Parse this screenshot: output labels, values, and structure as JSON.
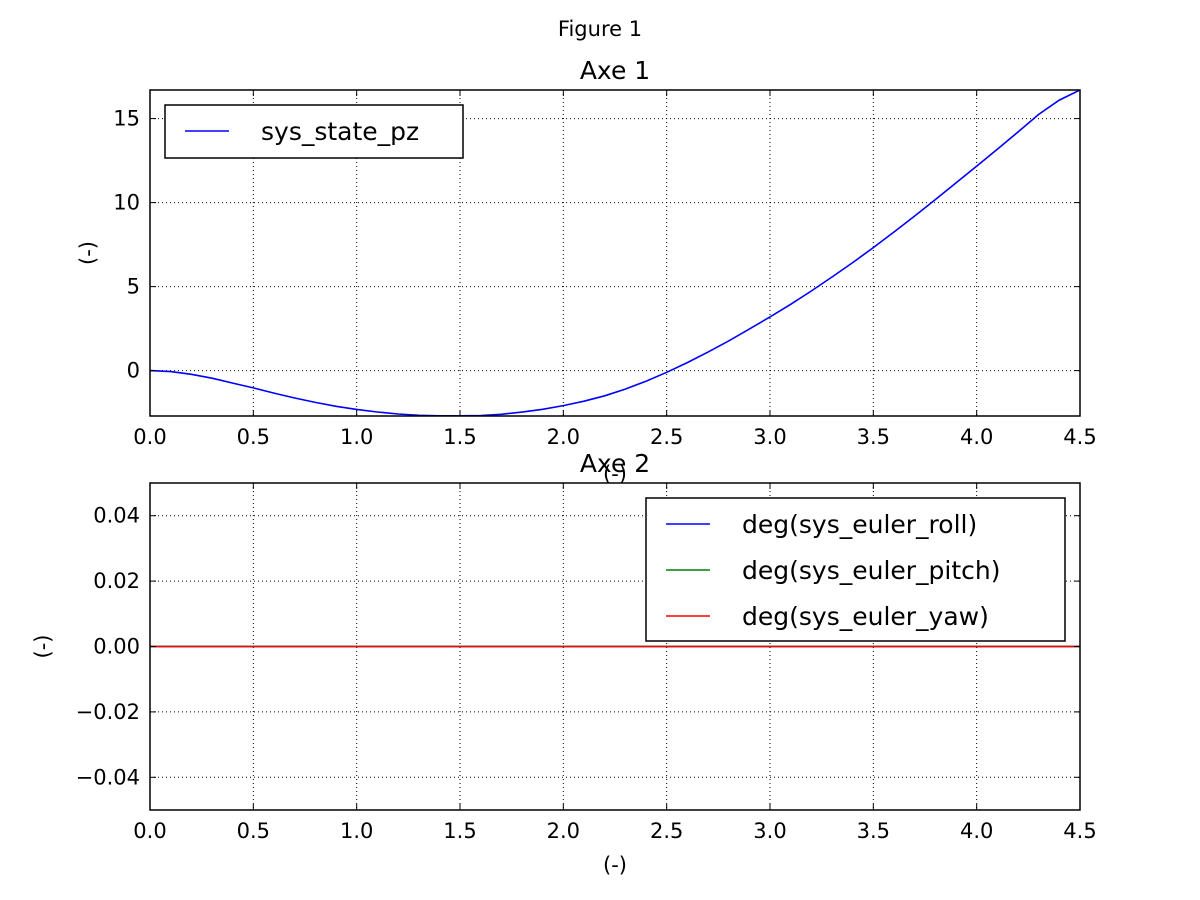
{
  "window": {
    "title": "Figure 1"
  },
  "chart_data": [
    {
      "type": "line",
      "title": "Axe 1",
      "xlabel": "(-)",
      "ylabel": "(-)",
      "xlim": [
        0.0,
        4.5
      ],
      "ylim": [
        -2.7,
        16.7
      ],
      "xticks": [
        "0.0",
        "0.5",
        "1.0",
        "1.5",
        "2.0",
        "2.5",
        "3.0",
        "3.5",
        "4.0",
        "4.5"
      ],
      "xtick_values": [
        0,
        0.5,
        1.0,
        1.5,
        2.0,
        2.5,
        3.0,
        3.5,
        4.0,
        4.5
      ],
      "yticks": [
        "0",
        "5",
        "10",
        "15"
      ],
      "ytick_values": [
        0,
        5,
        10,
        15
      ],
      "grid": true,
      "legend": "upper-left",
      "series": [
        {
          "name": "sys_state_pz",
          "color": "#0000ff",
          "x": [
            0,
            0.1,
            0.2,
            0.3,
            0.4,
            0.5,
            0.6,
            0.7,
            0.8,
            0.9,
            1.0,
            1.1,
            1.2,
            1.3,
            1.4,
            1.5,
            1.6,
            1.7,
            1.8,
            1.9,
            2.0,
            2.1,
            2.2,
            2.3,
            2.4,
            2.5,
            2.6,
            2.7,
            2.8,
            2.9,
            3.0,
            3.1,
            3.2,
            3.3,
            3.4,
            3.5,
            3.6,
            3.7,
            3.8,
            3.9,
            4.0,
            4.1,
            4.2,
            4.3,
            4.4,
            4.5
          ],
          "y": [
            0.0,
            -0.06,
            -0.22,
            -0.45,
            -0.74,
            -1.03,
            -1.34,
            -1.63,
            -1.89,
            -2.12,
            -2.31,
            -2.46,
            -2.58,
            -2.66,
            -2.69,
            -2.69,
            -2.67,
            -2.6,
            -2.47,
            -2.3,
            -2.08,
            -1.82,
            -1.5,
            -1.1,
            -0.63,
            -0.1,
            0.48,
            1.1,
            1.77,
            2.47,
            3.2,
            3.95,
            4.74,
            5.57,
            6.43,
            7.32,
            8.25,
            9.2,
            10.18,
            11.17,
            12.17,
            13.17,
            14.2,
            15.25,
            16.1,
            16.7
          ]
        }
      ]
    },
    {
      "type": "line",
      "title": "Axe 2",
      "xlabel": "(-)",
      "ylabel": "(-)",
      "xlim": [
        0.0,
        4.5
      ],
      "ylim": [
        -0.05,
        0.05
      ],
      "xticks": [
        "0.0",
        "0.5",
        "1.0",
        "1.5",
        "2.0",
        "2.5",
        "3.0",
        "3.5",
        "4.0",
        "4.5"
      ],
      "xtick_values": [
        0,
        0.5,
        1.0,
        1.5,
        2.0,
        2.5,
        3.0,
        3.5,
        4.0,
        4.5
      ],
      "yticks": [
        "−0.04",
        "−0.02",
        "0.00",
        "0.02",
        "0.04"
      ],
      "ytick_values": [
        -0.04,
        -0.02,
        0.0,
        0.02,
        0.04
      ],
      "grid": true,
      "legend": "upper-right",
      "series": [
        {
          "name": "deg(sys_euler_roll)",
          "color": "#0000ff",
          "x": [
            0,
            4.5
          ],
          "y": [
            0,
            0
          ]
        },
        {
          "name": "deg(sys_euler_pitch)",
          "color": "#008000",
          "x": [
            0,
            4.5
          ],
          "y": [
            0,
            0
          ]
        },
        {
          "name": "deg(sys_euler_yaw)",
          "color": "#ff0000",
          "x": [
            0,
            4.5
          ],
          "y": [
            0,
            0
          ]
        }
      ]
    }
  ]
}
